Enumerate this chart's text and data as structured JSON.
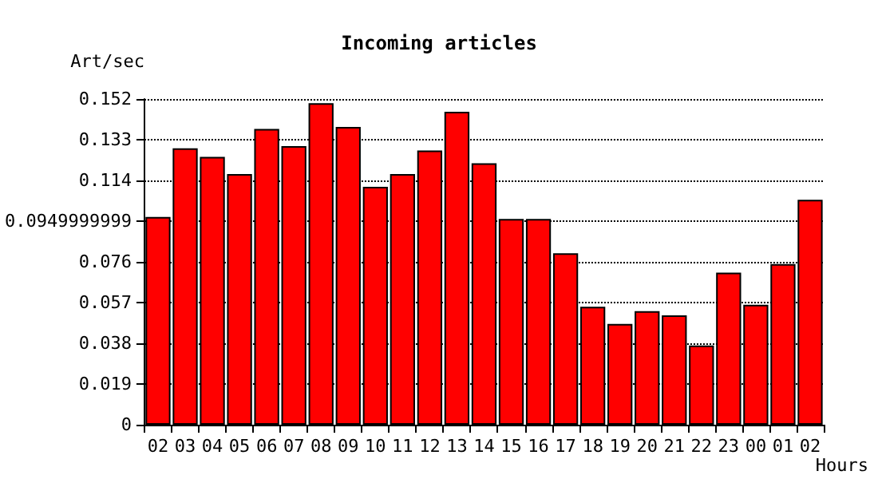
{
  "chart_data": {
    "type": "bar",
    "title": "Incoming articles",
    "xlabel": "Hours",
    "ylabel": "Art/sec",
    "categories": [
      "02",
      "03",
      "04",
      "05",
      "06",
      "07",
      "08",
      "09",
      "10",
      "11",
      "12",
      "13",
      "14",
      "15",
      "16",
      "17",
      "18",
      "19",
      "20",
      "21",
      "22",
      "23",
      "00",
      "01",
      "02"
    ],
    "values": [
      0.097,
      0.129,
      0.125,
      0.117,
      0.138,
      0.13,
      0.15,
      0.139,
      0.111,
      0.117,
      0.128,
      0.146,
      0.122,
      0.096,
      0.096,
      0.08,
      0.055,
      0.047,
      0.053,
      0.051,
      0.037,
      0.071,
      0.056,
      0.075,
      0.105
    ],
    "color": "#ff0000",
    "ylim": [
      0,
      0.152
    ],
    "yticks": [
      0,
      0.019,
      0.038,
      0.057,
      0.076,
      0.0949999999,
      0.114,
      0.133,
      0.152
    ],
    "grid": "y"
  }
}
